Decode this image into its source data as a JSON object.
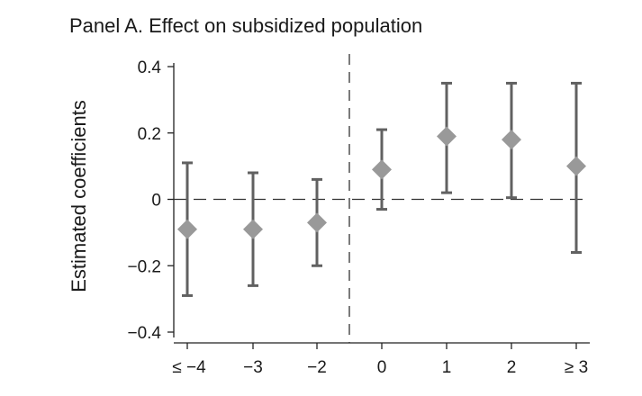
{
  "chart_data": {
    "type": "scatter",
    "title": "Panel A. Effect on subsidized population",
    "ylabel": "Estimated coefficients",
    "xlabel": "",
    "categories": [
      "≤ −4",
      "−3",
      "−2",
      "0",
      "1",
      "2",
      "≥ 3"
    ],
    "ylim": [
      -0.4,
      0.4
    ],
    "yticks": [
      {
        "value": 0.4,
        "label": "0.4"
      },
      {
        "value": 0.2,
        "label": "0.2"
      },
      {
        "value": 0,
        "label": "0"
      },
      {
        "value": -0.2,
        "label": "−0.2"
      },
      {
        "value": -0.4,
        "label": "−0.4"
      }
    ],
    "points": [
      {
        "category": "≤ −4",
        "estimate": -0.09,
        "ci_low": -0.29,
        "ci_high": 0.11
      },
      {
        "category": "−3",
        "estimate": -0.09,
        "ci_low": -0.26,
        "ci_high": 0.08
      },
      {
        "category": "−2",
        "estimate": -0.07,
        "ci_low": -0.2,
        "ci_high": 0.06
      },
      {
        "category": "0",
        "estimate": 0.09,
        "ci_low": -0.03,
        "ci_high": 0.21
      },
      {
        "category": "1",
        "estimate": 0.19,
        "ci_low": 0.02,
        "ci_high": 0.35
      },
      {
        "category": "2",
        "estimate": 0.18,
        "ci_low": 0.005,
        "ci_high": 0.35
      },
      {
        "category": "≥ 3",
        "estimate": 0.1,
        "ci_low": -0.16,
        "ci_high": 0.35
      }
    ],
    "reference_line_y": 0,
    "event_line_between": [
      "−2",
      "0"
    ],
    "marker_color": "#999999",
    "errorbar_color": "#616161",
    "grid": false
  }
}
